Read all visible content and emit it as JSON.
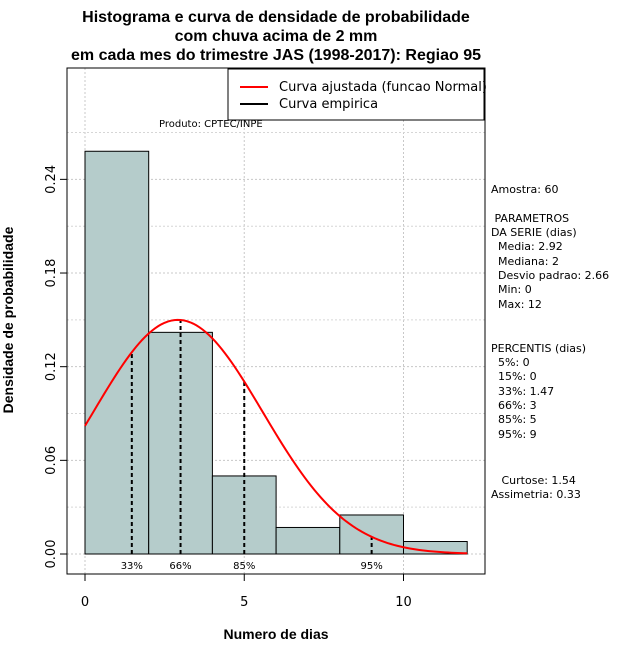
{
  "chart_data": {
    "type": "bar",
    "title_lines": [
      "Histograma e curva de densidade de probabilidade",
      "com chuva acima de 2 mm",
      "em cada mes do trimestre JAS (1998-2017): Regiao 95"
    ],
    "xlabel": "Numero de dias",
    "ylabel": "Densidade de probabilidade",
    "xlim": [
      -1,
      12.5
    ],
    "ylim": [
      -0.012,
      0.305
    ],
    "x_ticks": [
      0,
      5,
      10
    ],
    "y_ticks": [
      0.0,
      0.06,
      0.12,
      0.18,
      0.24
    ],
    "y_tick_labels": [
      "0.00",
      "0.06",
      "0.12",
      "0.18",
      "0.24"
    ],
    "grid": true,
    "bins": [
      {
        "from": 0,
        "to": 2,
        "density": 0.258
      },
      {
        "from": 2,
        "to": 4,
        "density": 0.142
      },
      {
        "from": 4,
        "to": 6,
        "density": 0.05
      },
      {
        "from": 6,
        "to": 8,
        "density": 0.017
      },
      {
        "from": 8,
        "to": 10,
        "density": 0.025
      },
      {
        "from": 10,
        "to": 12,
        "density": 0.008
      }
    ],
    "bar_color": "#b5cccb",
    "curve": {
      "type": "normal",
      "mean": 2.92,
      "sd": 2.66,
      "x_from": 0,
      "x_to": 12,
      "color": "#ff0000"
    },
    "percentile_lines": [
      {
        "label": "33%",
        "x": 1.47
      },
      {
        "label": "66%",
        "x": 3
      },
      {
        "label": "85%",
        "x": 5
      },
      {
        "label": "95%",
        "x": 9
      }
    ],
    "legend": {
      "position": "top-right",
      "items": [
        {
          "label": "Curva ajustada (funcao Normal)",
          "color": "#ff0000"
        },
        {
          "label": "Curva empirica",
          "color": "#000000"
        }
      ]
    },
    "annotation": "Produto: CPTEC/INPE"
  },
  "stats": {
    "sample": "Amostra: 60",
    "params": [
      " PARAMETROS",
      "DA SERIE (dias)",
      "  Media: 2.92",
      "  Mediana: 2",
      "  Desvio padrao: 2.66",
      "  Min: 0",
      "  Max: 12"
    ],
    "percentiles": [
      "PERCENTIS (dias)",
      "  5%: 0",
      "  15%: 0",
      "  33%: 1.47",
      "  66%: 3",
      "  85%: 5",
      "  95%: 9"
    ],
    "shape": [
      "   Curtose: 1.54",
      "Assimetria: 0.33"
    ]
  }
}
